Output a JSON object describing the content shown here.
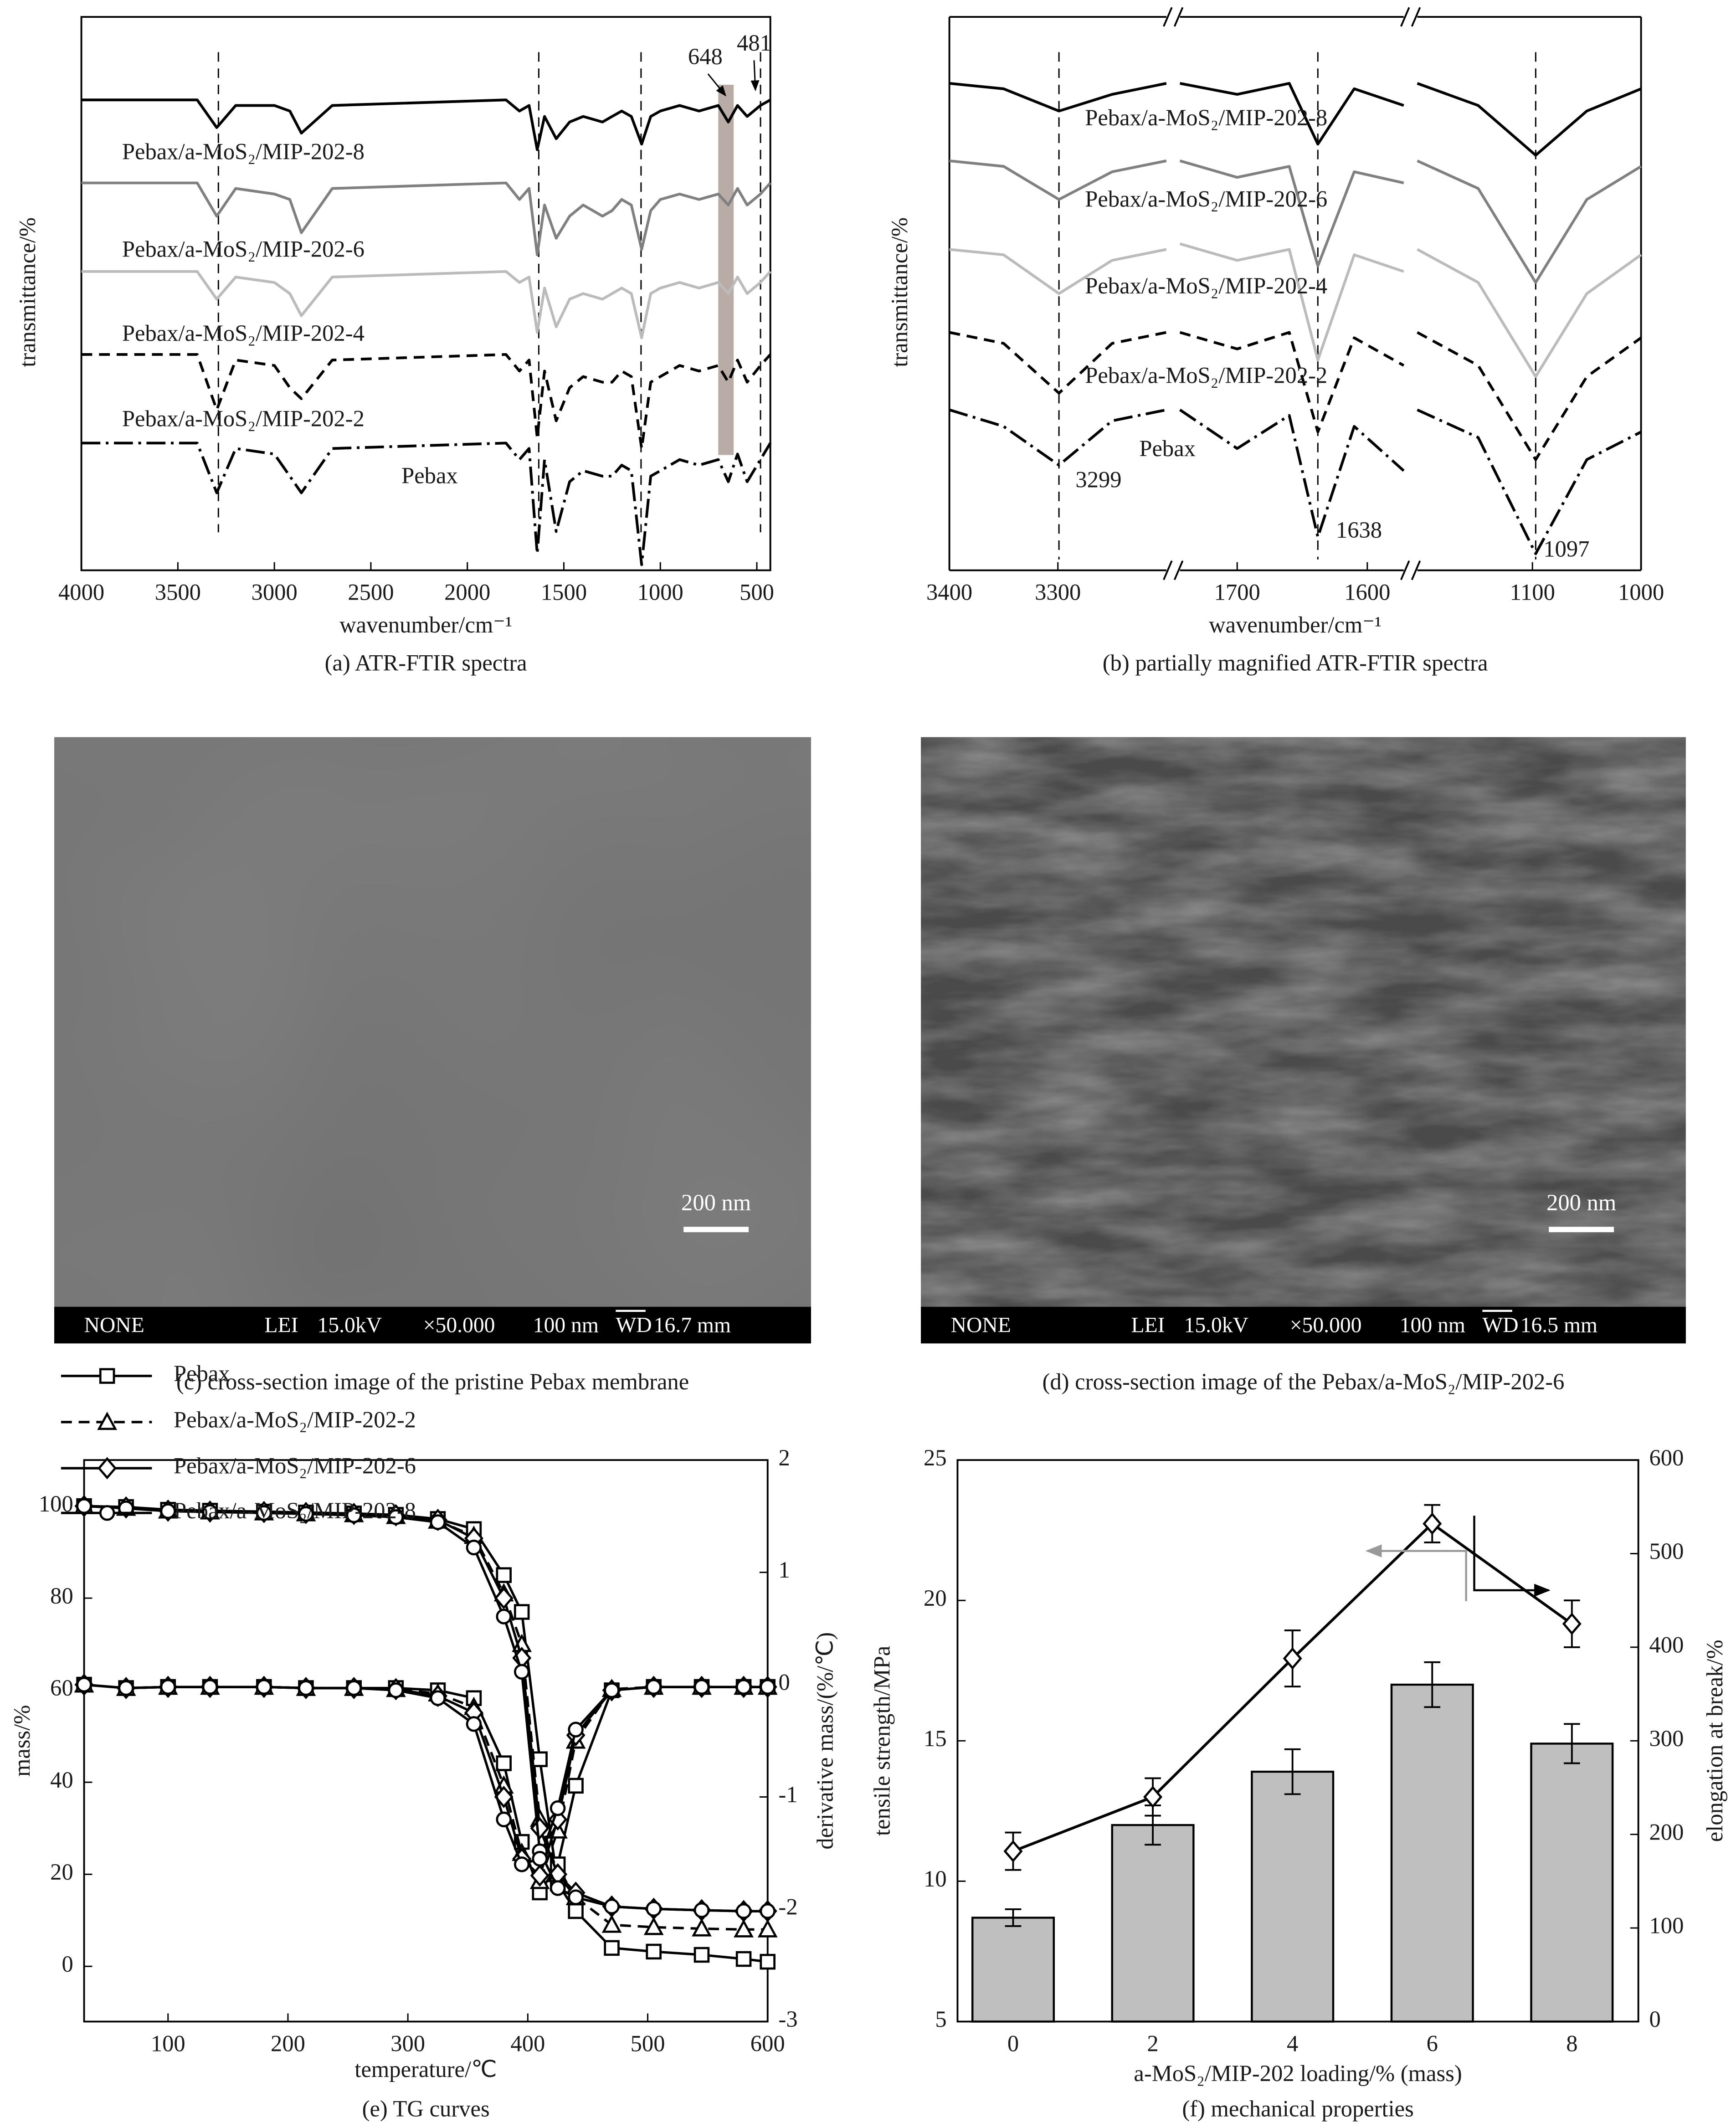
{
  "chart_data": [
    {
      "type": "spectra",
      "caption": "(a) ATR-FTIR spectra",
      "x_label": "wavenumber/cm⁻¹",
      "y_label": "transmittance/%",
      "xlim": [
        4000,
        430
      ],
      "ylim": [
        0,
        100
      ],
      "xticks": [
        4000,
        3500,
        3000,
        2500,
        2000,
        1500,
        1000,
        500
      ],
      "x": [
        4000,
        3400,
        3299,
        3200,
        3000,
        2920,
        2860,
        2700,
        1800,
        1730,
        1680,
        1638,
        1600,
        1540,
        1470,
        1400,
        1300,
        1250,
        1200,
        1150,
        1097,
        1050,
        1000,
        900,
        800,
        700,
        648,
        600,
        550,
        481,
        430
      ],
      "series": [
        {
          "name": "Pebax/a-MoS₂/MIP-202-8",
          "color": "#000000",
          "line_style": "solid",
          "values": [
            85,
            85,
            80,
            84,
            84,
            83,
            79,
            84,
            85,
            83,
            84,
            76,
            82,
            78,
            81,
            82,
            81,
            82,
            83,
            82,
            77,
            82,
            83,
            84,
            83,
            84,
            81,
            84,
            82,
            84,
            85
          ]
        },
        {
          "name": "Pebax/a-MoS₂/MIP-202-6",
          "color": "#808080",
          "line_style": "solid",
          "values": [
            70,
            70,
            64,
            69,
            68,
            67,
            61,
            69,
            70,
            67,
            69,
            57,
            66,
            60,
            64,
            66,
            64,
            65,
            67,
            66,
            58,
            65,
            67,
            68,
            67,
            68,
            66,
            69,
            66,
            68,
            70
          ]
        },
        {
          "name": "Pebax/a-MoS₂/MIP-202-4",
          "color": "#bbbbbb",
          "line_style": "solid",
          "values": [
            54,
            54,
            49,
            53,
            52,
            50,
            46,
            53,
            54,
            52,
            53,
            43,
            51,
            44,
            49,
            50,
            49,
            50,
            51,
            50,
            42,
            50,
            51,
            52,
            51,
            52,
            50,
            53,
            50,
            52,
            54
          ]
        },
        {
          "name": "Pebax/a-MoS₂/MIP-202-2",
          "color": "#000000",
          "line_style": "dashed",
          "values": [
            39,
            39,
            29,
            38,
            37,
            33,
            31,
            38,
            39,
            36,
            38,
            24,
            36,
            27,
            33,
            35,
            34,
            34,
            36,
            35,
            22,
            34,
            35,
            37,
            36,
            37,
            34,
            38,
            34,
            37,
            39
          ]
        },
        {
          "name": "Pebax",
          "color": "#000000",
          "line_style": "dashdot",
          "values": [
            23,
            23,
            14,
            22,
            21,
            17,
            14,
            22,
            23,
            20,
            22,
            3,
            20,
            7,
            16,
            18,
            17,
            17,
            19,
            18,
            1,
            17,
            18,
            20,
            19,
            20,
            16,
            21,
            16,
            20,
            23
          ]
        }
      ],
      "reference_lines": [
        3290,
        1630,
        1100,
        481
      ],
      "highlight_band": [
        700,
        620
      ],
      "highlight_color": "#b9aca6",
      "annotations": [
        "648",
        "481"
      ]
    },
    {
      "type": "broken-spectra",
      "caption": "(b) partially magnified ATR-FTIR spectra",
      "x_label": "wavenumber/cm⁻¹",
      "y_label": "transmittance/%",
      "ylim": [
        0,
        100
      ],
      "segments": [
        {
          "xlim": [
            3400,
            3200
          ],
          "xticks": [
            3400,
            3300
          ]
        },
        {
          "xlim": [
            1744,
            1572
          ],
          "xticks": [
            1700,
            1600
          ]
        },
        {
          "xlim": [
            1206,
            1000
          ],
          "xticks": [
            1100,
            1000
          ]
        }
      ],
      "x": [
        3400,
        3350,
        3299,
        3250,
        3200,
        1744,
        1700,
        1660,
        1638,
        1610,
        1572,
        1206,
        1150,
        1097,
        1050,
        1000
      ],
      "series": [
        {
          "name": "Pebax/a-MoS₂/MIP-202-8",
          "color": "#000000",
          "line_style": "solid",
          "values": [
            88,
            87,
            83,
            86,
            88,
            88,
            86,
            88,
            77,
            87,
            84,
            88,
            84,
            75,
            83,
            87
          ]
        },
        {
          "name": "Pebax/a-MoS₂/MIP-202-6",
          "color": "#808080",
          "line_style": "solid",
          "values": [
            74,
            73,
            67,
            72,
            74,
            74,
            71,
            73,
            55,
            72,
            70,
            74,
            69,
            52,
            67,
            73
          ]
        },
        {
          "name": "Pebax/a-MoS₂/MIP-202-4",
          "color": "#bbbbbb",
          "line_style": "solid",
          "values": [
            58,
            57,
            50,
            56,
            58,
            59,
            56,
            58,
            38,
            57,
            54,
            58,
            52,
            35,
            50,
            57
          ]
        },
        {
          "name": "Pebax/a-MoS₂/MIP-202-2",
          "color": "#000000",
          "line_style": "dashed",
          "values": [
            43,
            41,
            32,
            41,
            43,
            43,
            40,
            43,
            25,
            42,
            37,
            43,
            37,
            20,
            35,
            42
          ]
        },
        {
          "name": "Pebax",
          "color": "#000000",
          "line_style": "dashdot",
          "values": [
            29,
            26,
            19,
            27,
            29,
            29,
            22,
            28,
            6,
            26,
            18,
            29,
            24,
            3,
            20,
            25
          ]
        }
      ],
      "reference_lines": [
        3299,
        1638,
        1097
      ],
      "annotations": [
        "3299",
        "1638",
        "1097"
      ]
    },
    {
      "type": "dual-line",
      "caption": "(e) TG curves",
      "x_label": "temperature/℃",
      "y_label": "mass/%",
      "y2_label": "derivative mass/(%/℃)",
      "xlim": [
        30,
        600
      ],
      "ylim": [
        -12,
        110
      ],
      "y2lim": [
        -3,
        2
      ],
      "xticks": [
        100,
        200,
        300,
        400,
        500,
        600
      ],
      "yticks": [
        0,
        20,
        40,
        60,
        80,
        100
      ],
      "y2ticks": [
        -3,
        -2,
        -1,
        0,
        1,
        2
      ],
      "legend": "lower left",
      "x": [
        30,
        65,
        100,
        135,
        180,
        215,
        255,
        290,
        325,
        355,
        380,
        395,
        410,
        425,
        440,
        470,
        505,
        545,
        580,
        600
      ],
      "series": [
        {
          "name": "Pebax",
          "marker": "square",
          "line_style": "solid",
          "color": "#000000",
          "values": [
            100,
            99.8,
            99.2,
            99,
            98.8,
            98.6,
            98.4,
            98.1,
            97.2,
            95,
            85,
            77,
            45,
            18,
            12,
            4,
            3.2,
            2.5,
            1.6,
            1
          ],
          "y2_values": [
            0,
            -0.03,
            -0.02,
            -0.02,
            -0.02,
            -0.03,
            -0.03,
            -0.03,
            -0.05,
            -0.12,
            -0.7,
            -1.4,
            -1.85,
            -1.6,
            -0.9,
            -0.05,
            -0.02,
            -0.02,
            -0.02,
            -0.02
          ]
        },
        {
          "name": "Pebax/a-MoS₂/MIP-202-2",
          "marker": "triangle",
          "line_style": "dashed",
          "color": "#000000",
          "values": [
            100,
            99.6,
            99,
            98.8,
            98.6,
            98.4,
            98.2,
            97.8,
            96.8,
            93.5,
            81,
            70,
            32,
            20,
            15,
            9,
            8.5,
            8.2,
            8,
            8
          ],
          "y2_values": [
            0,
            -0.03,
            -0.02,
            -0.02,
            -0.02,
            -0.03,
            -0.03,
            -0.04,
            -0.08,
            -0.2,
            -0.9,
            -1.5,
            -1.75,
            -1.3,
            -0.5,
            -0.04,
            -0.02,
            -0.02,
            -0.02,
            -0.02
          ]
        },
        {
          "name": "Pebax/a-MoS₂/MIP-202-6",
          "marker": "diamond",
          "line_style": "solid",
          "color": "#000000",
          "values": [
            100,
            99.7,
            99,
            98.8,
            98.7,
            98.5,
            98.3,
            98,
            97,
            93,
            80,
            67,
            30,
            20,
            16,
            13,
            12.5,
            12.2,
            12,
            12
          ],
          "y2_values": [
            0,
            -0.03,
            -0.02,
            -0.02,
            -0.02,
            -0.03,
            -0.03,
            -0.04,
            -0.1,
            -0.25,
            -1.0,
            -1.55,
            -1.7,
            -1.2,
            -0.45,
            -0.05,
            -0.02,
            -0.02,
            -0.02,
            -0.02
          ]
        },
        {
          "name": "Pebax/a-MoS₂/MIP-202-8",
          "marker": "circle",
          "line_style": "solid",
          "color": "#000000",
          "values": [
            100,
            99.5,
            98.9,
            98.7,
            98.5,
            98.3,
            98,
            97.6,
            96.5,
            91,
            76,
            64,
            25,
            17,
            15,
            13,
            12.5,
            12.2,
            12,
            12
          ],
          "y2_values": [
            0,
            -0.03,
            -0.02,
            -0.02,
            -0.02,
            -0.03,
            -0.03,
            -0.05,
            -0.12,
            -0.35,
            -1.2,
            -1.6,
            -1.55,
            -1.1,
            -0.4,
            -0.05,
            -0.02,
            -0.02,
            -0.02,
            -0.02
          ]
        }
      ]
    },
    {
      "type": "bar-line",
      "caption": "(f) mechanical properties",
      "x_label": "a-MoS₂/MIP-202 loading/% (mass)",
      "y_label": "tensile strength/MPa",
      "y2_label": "elongation at break/%",
      "categories": [
        "0",
        "2",
        "4",
        "6",
        "8"
      ],
      "ylim": [
        5,
        25
      ],
      "yticks": [
        5,
        10,
        15,
        20,
        25
      ],
      "y2lim": [
        0,
        600
      ],
      "y2ticks": [
        0,
        100,
        200,
        300,
        400,
        500,
        600
      ],
      "series": [
        {
          "type": "bar",
          "color": "#bfbfbf",
          "values": [
            8.7,
            12,
            13.9,
            17,
            14.9
          ],
          "errors": [
            0.3,
            0.7,
            0.8,
            0.8,
            0.7
          ]
        },
        {
          "type": "line",
          "axis": "y2",
          "marker": "diamond",
          "color": "#000000",
          "values": [
            182,
            240,
            388,
            532,
            425
          ],
          "errors": [
            20,
            20,
            30,
            20,
            25
          ]
        }
      ]
    }
  ],
  "sem_images": [
    {
      "caption": "(c) cross-section image of the pristine Pebax membrane",
      "scale_bar": "200 nm",
      "info_bar": [
        "NONE",
        "LEI",
        "15.0kV",
        "×50.000",
        "100 nm",
        "WD",
        "16.7 mm"
      ]
    },
    {
      "caption": "(d) cross-section image of the Pebax/a-MoS₂/MIP-202-6",
      "scale_bar": "200 nm",
      "info_bar": [
        "NONE",
        "LEI",
        "15.0kV",
        "×50.000",
        "100 nm",
        "WD",
        "16.5 mm"
      ]
    }
  ]
}
